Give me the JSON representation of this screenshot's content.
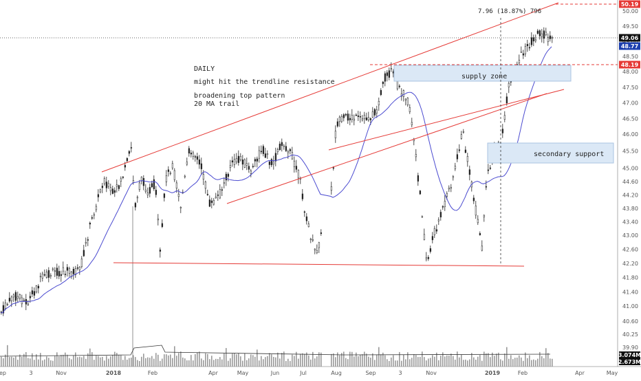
{
  "chart_data": {
    "type": "candlestick",
    "timeframe": "DAILY",
    "price_axis": {
      "ticks": [
        "50.00",
        "49.50",
        "49.00",
        "48.50",
        "48.00",
        "47.50",
        "47.00",
        "46.50",
        "46.00",
        "45.50",
        "45.00",
        "44.60",
        "44.20",
        "43.80",
        "43.40",
        "43.00",
        "42.60",
        "42.20",
        "41.80",
        "41.40",
        "41.00",
        "40.60",
        "40.25",
        "39.90"
      ],
      "ylim": [
        39.9,
        50.25
      ]
    },
    "time_axis": {
      "ticks": [
        {
          "label": "ep",
          "bold": false
        },
        {
          "label": "3",
          "bold": false
        },
        {
          "label": "Nov",
          "bold": false
        },
        {
          "label": "2018",
          "bold": true
        },
        {
          "label": "Feb",
          "bold": false
        },
        {
          "label": "Apr",
          "bold": false
        },
        {
          "label": "May",
          "bold": false
        },
        {
          "label": "Jun",
          "bold": false
        },
        {
          "label": "Jul",
          "bold": false
        },
        {
          "label": "Aug",
          "bold": false
        },
        {
          "label": "Sep",
          "bold": false
        },
        {
          "label": "3",
          "bold": false
        },
        {
          "label": "Nov",
          "bold": false
        },
        {
          "label": "2019",
          "bold": true
        },
        {
          "label": "Feb",
          "bold": false
        },
        {
          "label": "Apr",
          "bold": false
        },
        {
          "label": "May",
          "bold": false
        }
      ]
    },
    "price_badges": [
      {
        "value": "50.19",
        "color": "#e53935"
      },
      {
        "value": "49.06",
        "color": "#111111"
      },
      {
        "value": "48.77",
        "color": "#1e40af"
      },
      {
        "value": "48.19",
        "color": "#e53935"
      }
    ],
    "volume_badges": [
      {
        "value": "3.074M",
        "color": "#111111"
      },
      {
        "value": "2.673M",
        "color": "#111111"
      }
    ],
    "annotations": {
      "title": "DAILY",
      "line1": "might hit the trendline resistance",
      "line2": "broadening top pattern",
      "line3": "20 MA trail",
      "measure": "7.96 (18.87%) 796",
      "supply_zone": "supply zone",
      "secondary_support": "secondary support"
    },
    "indicators": [
      "20 MA"
    ],
    "colors": {
      "candle": "#222222",
      "ma": "#4a4ad0",
      "trendline": "#e53935",
      "zone_fill": "#dbe8f6",
      "zone_stroke": "#a9c3e0"
    }
  }
}
